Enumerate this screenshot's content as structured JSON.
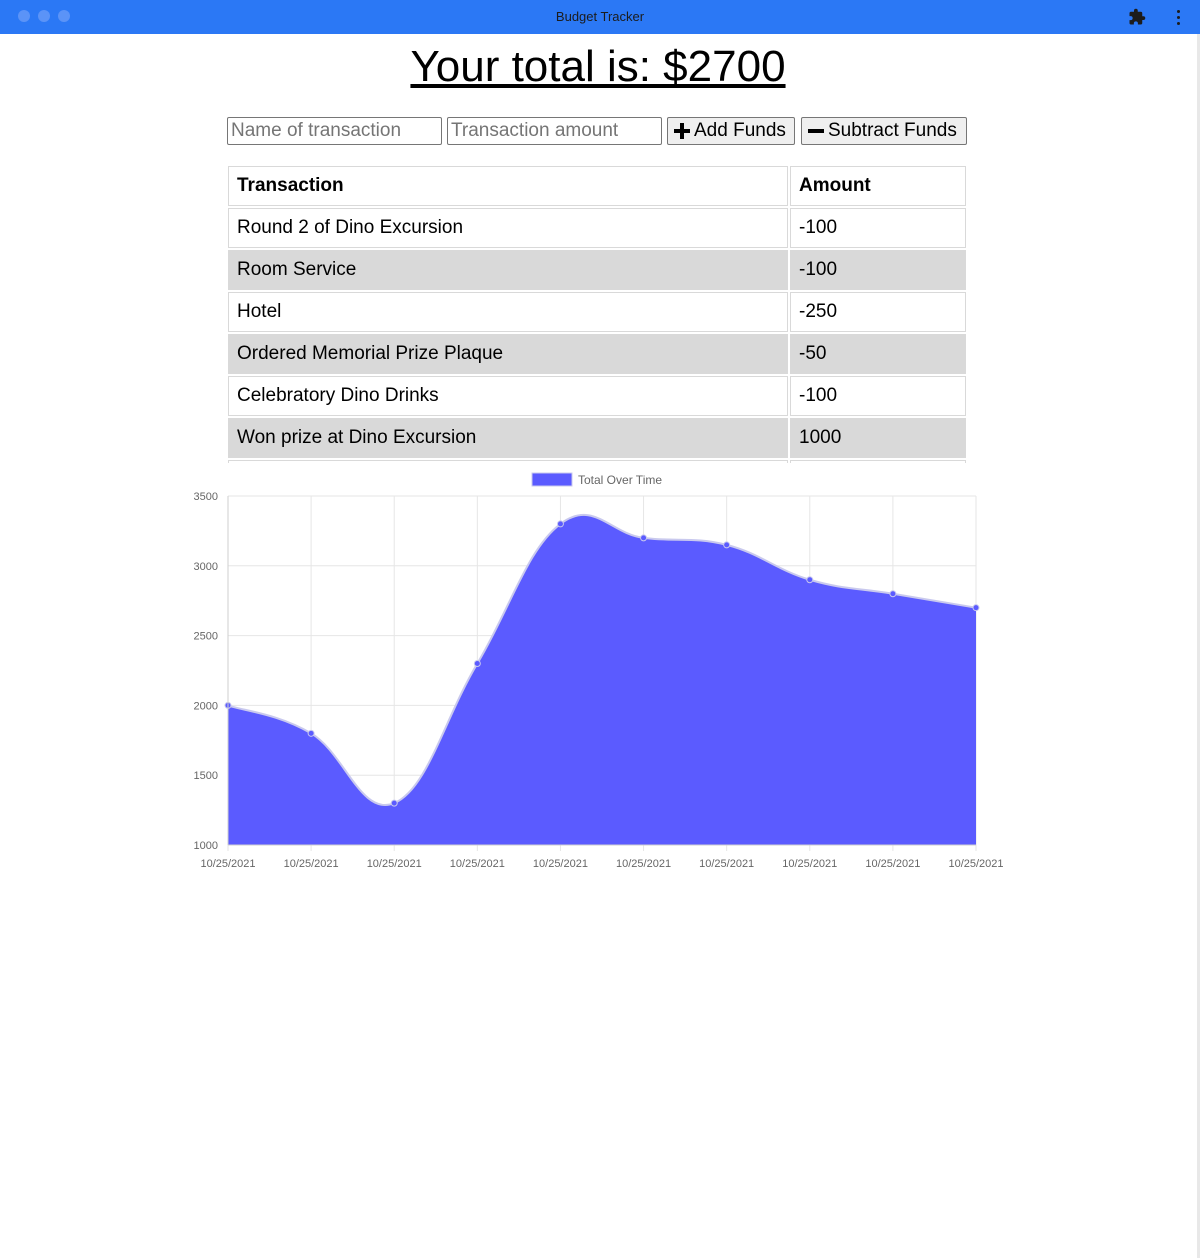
{
  "window": {
    "title": "Budget Tracker"
  },
  "header": {
    "total_text": "Your total is: $2700"
  },
  "form": {
    "name_placeholder": "Name of transaction",
    "amount_placeholder": "Transaction amount",
    "add_label": "Add Funds",
    "subtract_label": "Subtract Funds"
  },
  "table": {
    "headers": [
      "Transaction",
      "Amount"
    ],
    "rows": [
      {
        "name": "Round 2 of Dino Excursion",
        "amount": "-100"
      },
      {
        "name": "Room Service",
        "amount": "-100"
      },
      {
        "name": "Hotel",
        "amount": "-250"
      },
      {
        "name": "Ordered Memorial Prize Plaque",
        "amount": "-50"
      },
      {
        "name": "Celebratory Dino Drinks",
        "amount": "-100"
      },
      {
        "name": "Won prize at Dino Excursion",
        "amount": "1000"
      }
    ]
  },
  "colors": {
    "titlebar": "#2b78f5",
    "series_fill": "#5b5bff",
    "series_border": "#c9c9ee"
  },
  "chart_data": {
    "type": "area",
    "legend": [
      "Total Over Time"
    ],
    "legend_position": "top",
    "grid": true,
    "x": [
      "10/25/2021",
      "10/25/2021",
      "10/25/2021",
      "10/25/2021",
      "10/25/2021",
      "10/25/2021",
      "10/25/2021",
      "10/25/2021",
      "10/25/2021",
      "10/25/2021"
    ],
    "series": [
      {
        "name": "Total Over Time",
        "values": [
          2000,
          1800,
          1300,
          2300,
          3300,
          3200,
          3150,
          2900,
          2800,
          2700
        ]
      }
    ],
    "ylim": [
      1000,
      3500
    ],
    "yticks": [
      1000,
      1500,
      2000,
      2500,
      3000,
      3500
    ]
  }
}
